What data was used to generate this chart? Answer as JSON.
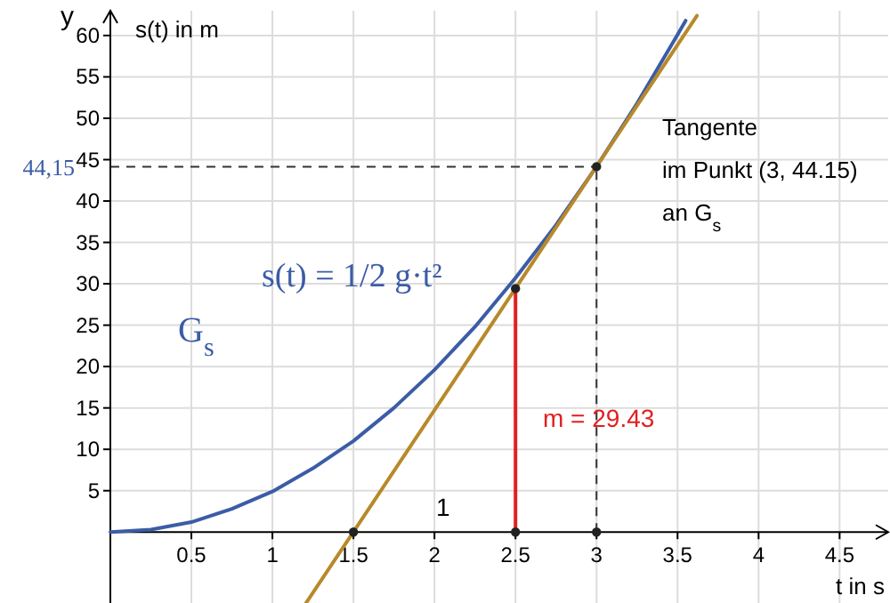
{
  "chart_data": {
    "type": "line",
    "xlabel": "t in s",
    "ylabel": "s(t) in m",
    "xlim": [
      0,
      4.8
    ],
    "ylim": [
      -9,
      63
    ],
    "xticks": [
      0.5,
      1,
      1.5,
      2,
      2.5,
      3,
      3.5,
      4,
      4.5
    ],
    "yticks": [
      5,
      10,
      15,
      20,
      25,
      30,
      35,
      40,
      45,
      50,
      55,
      60
    ],
    "grid": true,
    "series": [
      {
        "color": "#3b5ca6",
        "x": [
          0,
          0.25,
          0.5,
          0.75,
          1,
          1.25,
          1.5,
          1.75,
          2,
          2.25,
          2.5,
          2.75,
          3,
          3.25,
          3.5,
          3.55
        ],
        "values": [
          0,
          0.3,
          1.2,
          2.8,
          4.9,
          7.7,
          11,
          15,
          19.6,
          24.8,
          30.7,
          37.1,
          44.15,
          51.8,
          60.1,
          61.8
        ]
      },
      {
        "color": "#b8892a",
        "x": [
          1.2,
          3.62
        ],
        "values": [
          -8.8,
          62.4
        ]
      },
      {
        "color": "#e02020",
        "x": [
          2.5,
          2.5
        ],
        "values": [
          0,
          29.43
        ]
      },
      {
        "type": "scatter",
        "color": "#222222",
        "marker": "circle",
        "x": [
          1.5,
          2.5,
          3,
          2.5,
          3
        ],
        "values": [
          0,
          0,
          0,
          29.43,
          44.15
        ]
      }
    ],
    "ref_lines": [
      {
        "axis": "y",
        "value": 44.15,
        "label": "44,15",
        "line_style": "dashed",
        "color": "#333333"
      },
      {
        "axis": "x",
        "value": 3,
        "label": null,
        "line_style": "dashed",
        "color": "#333333"
      }
    ],
    "annotations": [
      "y",
      "s(t) = 1/2 g·t²",
      "G$_{s}$",
      "Tangente\nim Punkt (3, 44.15)\nan G$_{s}$",
      "m = 29.43",
      "1"
    ]
  }
}
